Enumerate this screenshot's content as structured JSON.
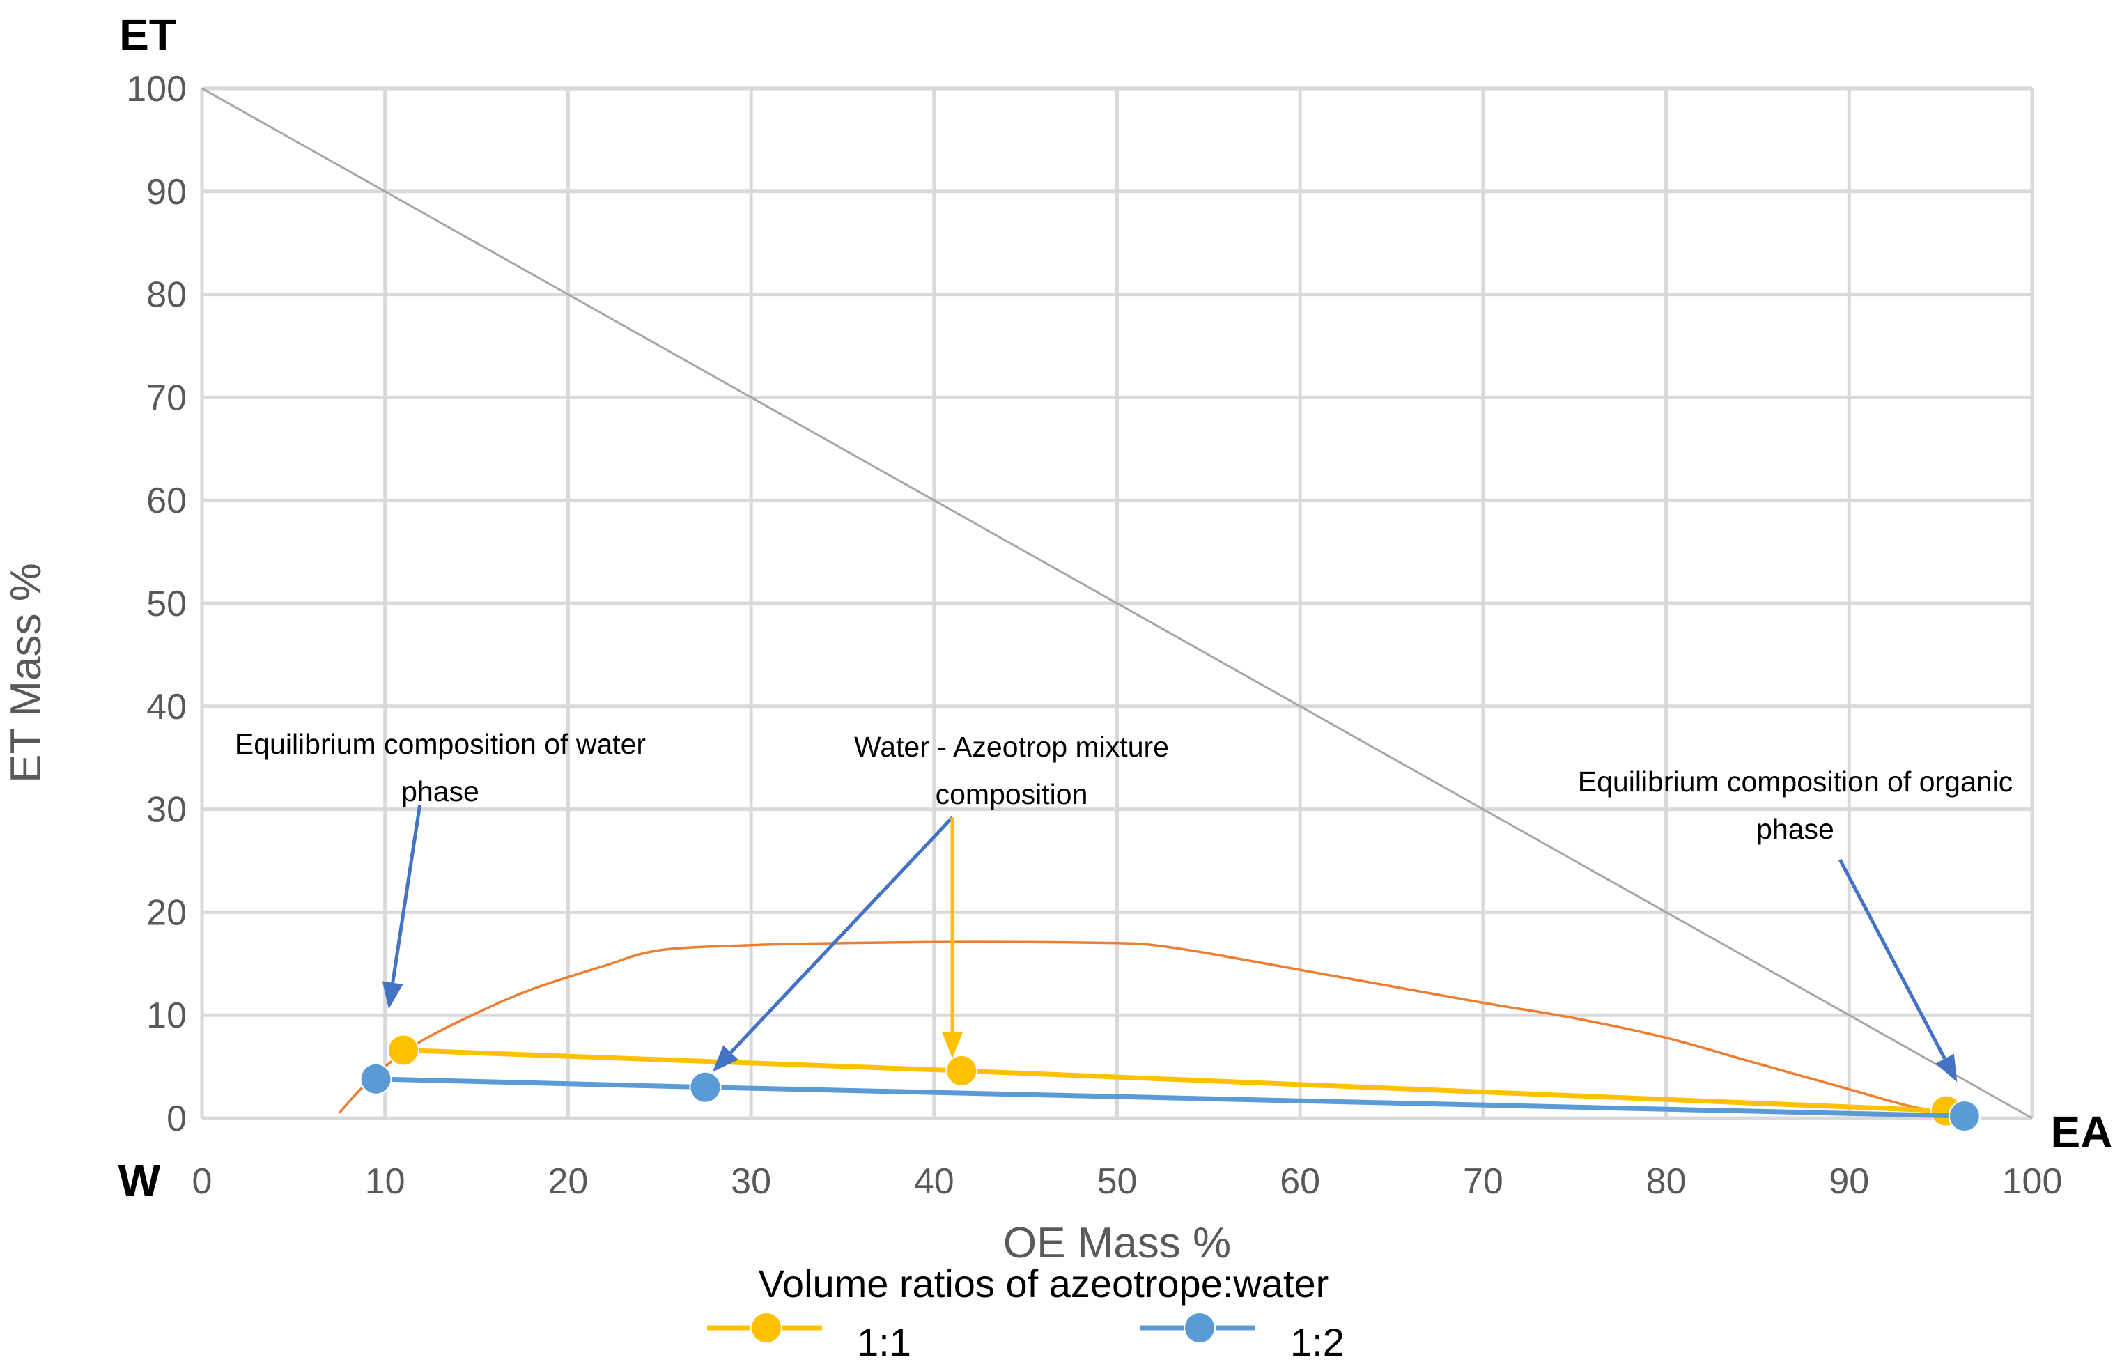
{
  "chart_data": {
    "type": "scatter",
    "title": "",
    "xlabel": "OE Mass %",
    "ylabel": "ET Mass %",
    "xlim": [
      0,
      100
    ],
    "ylim": [
      0,
      100
    ],
    "xticks": [
      "0",
      "10",
      "20",
      "30",
      "40",
      "50",
      "60",
      "70",
      "80",
      "90",
      "100"
    ],
    "yticks": [
      "0",
      "10",
      "20",
      "30",
      "40",
      "50",
      "60",
      "70",
      "80",
      "90",
      "100"
    ],
    "grid": true,
    "corner_labels": {
      "top": "ET",
      "bottom_left": "W",
      "bottom_right": "EA"
    },
    "diagonal": {
      "x": [
        0,
        100
      ],
      "y": [
        100,
        0
      ],
      "color": "#a6a6a6"
    },
    "binodal_curve": {
      "color": "#ed7d31",
      "x": [
        7.5,
        8.5,
        10,
        12,
        15,
        18,
        22,
        25,
        30,
        35,
        40,
        45,
        50,
        52,
        55,
        60,
        65,
        70,
        75,
        80,
        85,
        90,
        93,
        95
      ],
      "y": [
        0.5,
        2.5,
        5.0,
        7.5,
        10.2,
        12.5,
        14.8,
        16.3,
        16.8,
        17.0,
        17.1,
        17.1,
        17.0,
        16.8,
        16.0,
        14.4,
        12.8,
        11.2,
        9.7,
        7.8,
        5.3,
        2.8,
        1.3,
        0.6
      ]
    },
    "series": [
      {
        "name": "1:1",
        "color": "#ffc000",
        "x": [
          11.0,
          41.5,
          95.3
        ],
        "y": [
          6.6,
          4.6,
          0.7
        ]
      },
      {
        "name": "1:2",
        "color": "#5b9bd5",
        "x": [
          9.5,
          27.5,
          96.3
        ],
        "y": [
          3.8,
          3.0,
          0.2
        ]
      }
    ],
    "legend": {
      "title": "Volume ratios of azeotrope:water",
      "position": "bottom"
    },
    "annotations": [
      {
        "lines": [
          "Equilibrium composition of water",
          "phase"
        ],
        "arrow_color": "#4472c4",
        "arrow_from": [
          11.9,
          30.4
        ],
        "arrow_to": [
          10.2,
          10.6
        ]
      },
      {
        "lines": [
          "Water - Azeotrop mixture",
          "composition"
        ],
        "arrow_color": "#4472c4",
        "arrow_from": [
          41.0,
          29.2
        ],
        "arrow_to": [
          27.9,
          4.5
        ]
      },
      {
        "lines": [],
        "arrow_color": "#ffc000",
        "arrow_from": [
          41.0,
          29.2
        ],
        "arrow_to": [
          41.0,
          5.8
        ]
      },
      {
        "lines": [
          "Equilibrium composition of organic",
          "phase"
        ],
        "arrow_color": "#4472c4",
        "arrow_from": [
          89.5,
          25.1
        ],
        "arrow_to": [
          95.9,
          3.5
        ]
      }
    ]
  }
}
